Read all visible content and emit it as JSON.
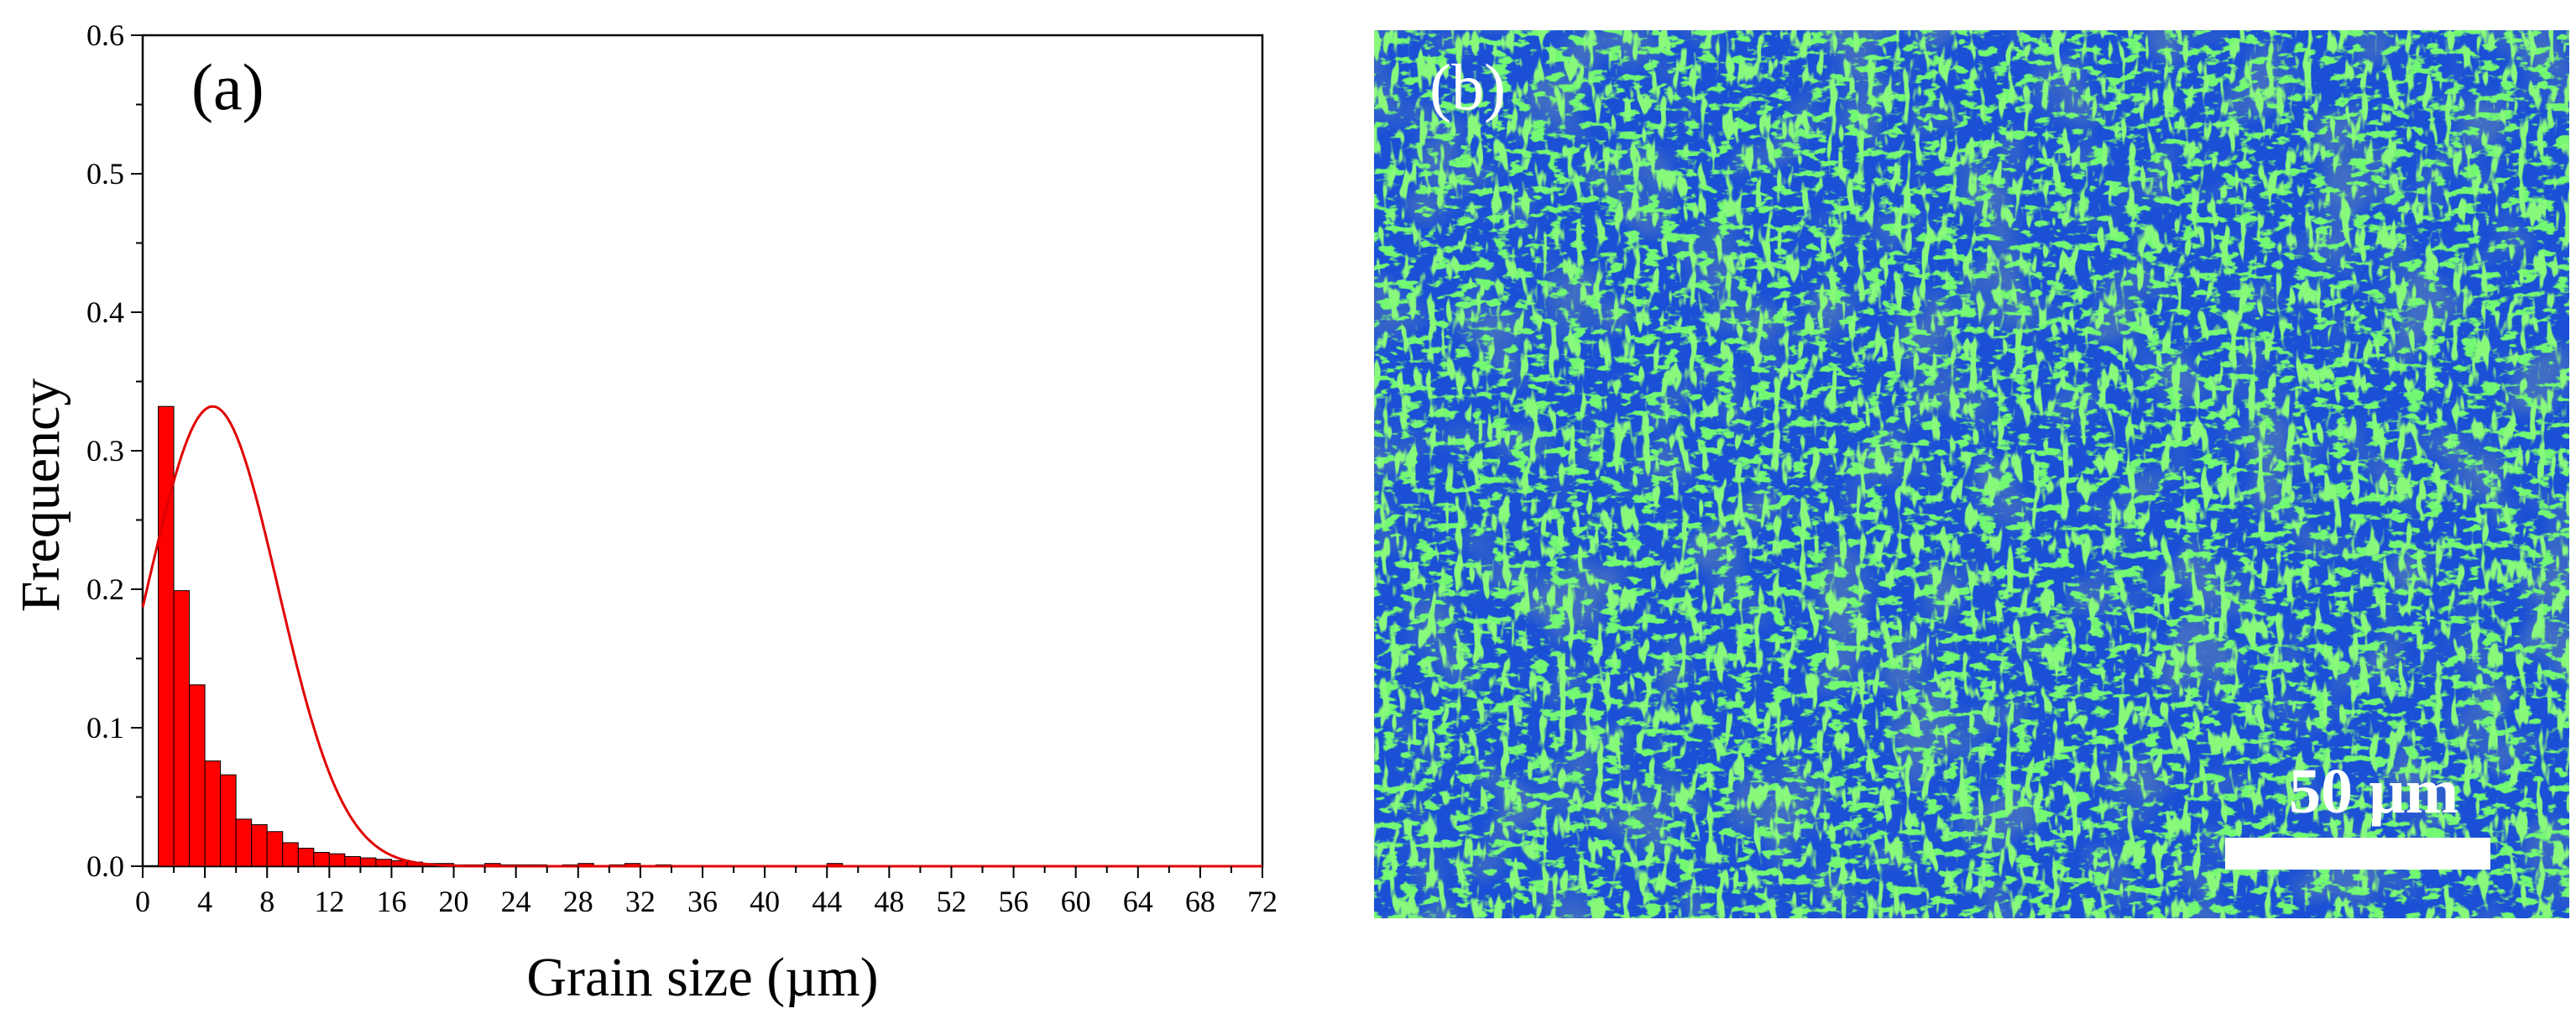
{
  "chart_data": {
    "type": "bar",
    "panel_label": "(a)",
    "xlabel": "Grain size (µm)",
    "ylabel": "Frequency",
    "xlim": [
      0,
      72
    ],
    "ylim": [
      0,
      0.6
    ],
    "xticks": [
      0,
      4,
      8,
      12,
      16,
      20,
      24,
      28,
      32,
      36,
      40,
      44,
      48,
      52,
      56,
      60,
      64,
      68,
      72
    ],
    "yticks": [
      "0.0",
      "0.1",
      "0.2",
      "0.3",
      "0.4",
      "0.5",
      "0.6"
    ],
    "bin_width": 1,
    "bins": [
      {
        "x0": 1,
        "value": 0.332
      },
      {
        "x0": 2,
        "value": 0.199
      },
      {
        "x0": 3,
        "value": 0.131
      },
      {
        "x0": 4,
        "value": 0.076
      },
      {
        "x0": 5,
        "value": 0.066
      },
      {
        "x0": 6,
        "value": 0.034
      },
      {
        "x0": 7,
        "value": 0.03
      },
      {
        "x0": 8,
        "value": 0.025
      },
      {
        "x0": 9,
        "value": 0.017
      },
      {
        "x0": 10,
        "value": 0.013
      },
      {
        "x0": 11,
        "value": 0.01
      },
      {
        "x0": 12,
        "value": 0.009
      },
      {
        "x0": 13,
        "value": 0.007
      },
      {
        "x0": 14,
        "value": 0.006
      },
      {
        "x0": 15,
        "value": 0.005
      },
      {
        "x0": 16,
        "value": 0.004
      },
      {
        "x0": 17,
        "value": 0.003
      },
      {
        "x0": 18,
        "value": 0.002
      },
      {
        "x0": 19,
        "value": 0.002
      },
      {
        "x0": 20,
        "value": 0.001
      },
      {
        "x0": 21,
        "value": 0.001
      },
      {
        "x0": 22,
        "value": 0.002
      },
      {
        "x0": 23,
        "value": 0.001
      },
      {
        "x0": 24,
        "value": 0.001
      },
      {
        "x0": 25,
        "value": 0.001
      },
      {
        "x0": 27,
        "value": 0.001
      },
      {
        "x0": 28,
        "value": 0.002
      },
      {
        "x0": 30,
        "value": 0.001
      },
      {
        "x0": 31,
        "value": 0.002
      },
      {
        "x0": 33,
        "value": 0.001
      },
      {
        "x0": 44,
        "value": 0.002
      }
    ],
    "fit_curve": {
      "type": "normal",
      "mean": 4.5,
      "sd": 4.2,
      "peak": 0.332
    },
    "bar_color": "#ff0000",
    "curve_color": "#e00000",
    "grid": false
  },
  "micrograph": {
    "panel_label": "(b)",
    "scale_bar_label": "50 µm",
    "colors": {
      "blue": "#1a4fd6",
      "green": "#2cf02c"
    }
  }
}
